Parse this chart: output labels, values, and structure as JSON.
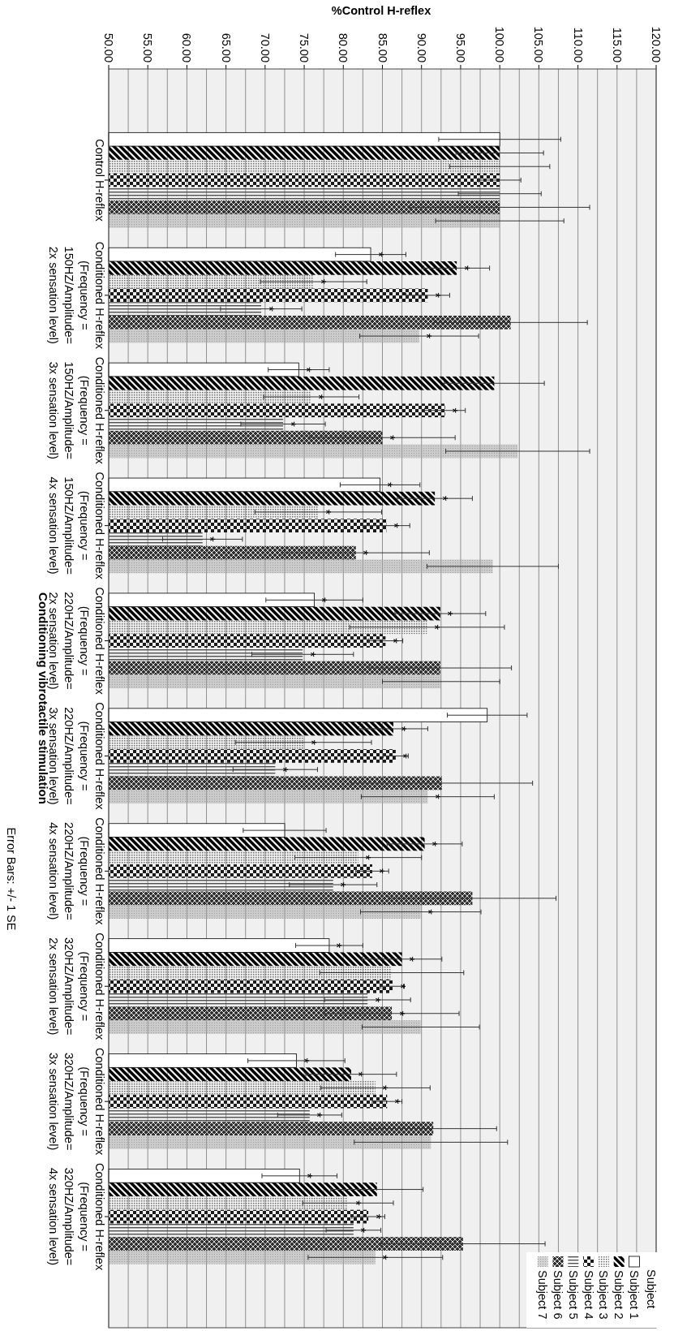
{
  "chart_data": {
    "type": "bar",
    "xlabel": "%Control H-reflex",
    "ylabel": "Conditioning vibrotactile stimulation",
    "orientation": "horizontal",
    "legend_title": "Subject",
    "annotations": [
      "Error Bars: +/- 1 SE"
    ],
    "categories": [
      "Control H-reflex",
      "Conditioned H-reflex (Frequency = 150HZ/Amplitude= 2x sensation level)",
      "Conditioned H-reflex (Frequency = 150HZ/Amplitude= 3x sensation level)",
      "Conditioned H-reflex (Frequency = 150HZ/Amplitude= 4x sensation level)",
      "Conditioned H-reflex (Frequency = 220HZ/Amplitude= 2x sensation level)",
      "Conditioned H-reflex (Frequency = 220HZ/Amplitude= 3x sensation level)",
      "Conditioned H-reflex (Frequency = 220HZ/Amplitude= 4x sensation level)",
      "Conditioned H-reflex (Frequency = 320HZ/Amplitude= 2x sensation level)",
      "Conditioned H-reflex (Frequency = 320HZ/Amplitude= 3x sensation level)",
      "Conditioned H-reflex (Frequency = 320HZ/Amplitude= 4x sensation level)"
    ],
    "series": [
      {
        "name": "Subject 1",
        "color": "#ffffff",
        "values": [
          100,
          83.5,
          74.3,
          84.7,
          76.3,
          98.4,
          72.5,
          78.2,
          74.0,
          74.4
        ],
        "errors": [
          7.8,
          4.5,
          3.9,
          5.1,
          6.2,
          5.1,
          5.3,
          4.3,
          6.2,
          4.8
        ],
        "value_labels": [
          null,
          "*",
          "*",
          "*",
          "*",
          null,
          null,
          "*",
          "*",
          "*"
        ]
      },
      {
        "name": "Subject 2",
        "color": "#000000",
        "values": [
          100,
          94.5,
          99.3,
          91.7,
          92.4,
          86.4,
          90.4,
          87.5,
          81.0,
          84.3
        ],
        "errors": [
          5.6,
          4.2,
          6.4,
          4.8,
          5.8,
          4.4,
          4.8,
          5.1,
          5.8,
          5.9
        ],
        "value_labels": [
          null,
          "*",
          null,
          "*",
          "*",
          "*",
          "*",
          "*",
          "*",
          null
        ]
      },
      {
        "name": "Subject 3",
        "color": "#707070",
        "values": [
          100,
          76.2,
          75.9,
          76.8,
          90.7,
          74.9,
          81.9,
          86.2,
          84.1,
          80.6
        ],
        "errors": [
          6.4,
          6.8,
          6.1,
          8.1,
          9.9,
          8.7,
          8.1,
          9.2,
          7.0,
          5.8
        ],
        "value_labels": [
          null,
          "*",
          "*",
          "*",
          "*",
          "*",
          "*",
          null,
          "*",
          "*"
        ]
      },
      {
        "name": "Subject 4",
        "color": "#1a1a1a",
        "values": [
          100,
          90.8,
          93.0,
          85.5,
          85.4,
          86.7,
          83.7,
          86.3,
          85.6,
          83.2
        ],
        "errors": [
          2.7,
          2.8,
          2.6,
          3.0,
          2.2,
          1.6,
          2.1,
          1.5,
          1.9,
          2.1
        ],
        "value_labels": [
          null,
          "*",
          "*",
          "*",
          "*",
          "*",
          "*",
          "*",
          "*",
          "*"
        ]
      },
      {
        "name": "Subject 5",
        "color": "#505050",
        "values": [
          100,
          69.5,
          72.3,
          62.0,
          74.8,
          71.3,
          78.7,
          83.1,
          75.7,
          81.3
        ],
        "errors": [
          5.3,
          5.2,
          5.4,
          5.1,
          6.5,
          5.4,
          5.6,
          5.5,
          4.1,
          3.5
        ],
        "value_labels": [
          null,
          "*",
          "*",
          "*",
          "*",
          "*",
          "*",
          "*",
          "*",
          "*"
        ]
      },
      {
        "name": "Subject 6",
        "color": "#303030",
        "values": [
          100,
          101.4,
          85.0,
          81.6,
          92.4,
          92.6,
          96.5,
          86.2,
          91.5,
          95.3
        ],
        "errors": [
          11.5,
          9.8,
          9.3,
          9.4,
          9.1,
          11.6,
          10.7,
          8.6,
          8.1,
          10.5
        ],
        "value_labels": [
          null,
          null,
          "*",
          "*",
          null,
          null,
          null,
          "*",
          null,
          null
        ]
      },
      {
        "name": "Subject 7",
        "color": "#a0a0a0",
        "values": [
          100,
          89.7,
          102.3,
          99.1,
          92.5,
          90.8,
          89.9,
          89.9,
          91.2,
          84.1
        ],
        "errors": [
          8.2,
          7.6,
          9.2,
          8.4,
          7.5,
          8.5,
          7.7,
          7.5,
          9.8,
          8.6
        ],
        "value_labels": [
          null,
          "*",
          null,
          null,
          null,
          "*",
          "*",
          null,
          null,
          "*"
        ]
      }
    ],
    "xlim": [
      50,
      120
    ],
    "xticks": [
      {
        "value": 50,
        "label": "50.00"
      },
      {
        "value": 52.5,
        "label": null
      },
      {
        "value": 55,
        "label": "55.00"
      },
      {
        "value": 57.5,
        "label": null
      },
      {
        "value": 60,
        "label": "60.00"
      },
      {
        "value": 62.5,
        "label": null
      },
      {
        "value": 65,
        "label": "65.00"
      },
      {
        "value": 67.5,
        "label": null
      },
      {
        "value": 70,
        "label": "70.00"
      },
      {
        "value": 72.5,
        "label": null
      },
      {
        "value": 75,
        "label": "75.00"
      },
      {
        "value": 77.5,
        "label": null
      },
      {
        "value": 80,
        "label": "80.00"
      },
      {
        "value": 82.5,
        "label": null
      },
      {
        "value": 85,
        "label": "85.00"
      },
      {
        "value": 87.5,
        "label": null
      },
      {
        "value": 90,
        "label": "90.00"
      },
      {
        "value": 92.5,
        "label": null
      },
      {
        "value": 95,
        "label": "95.00"
      },
      {
        "value": 97.5,
        "label": null
      },
      {
        "value": 100,
        "label": "100.00"
      },
      {
        "value": 102.5,
        "label": null
      },
      {
        "value": 105,
        "label": "105.00"
      },
      {
        "value": 107.5,
        "label": null
      },
      {
        "value": 110,
        "label": "110.00"
      },
      {
        "value": 112.5,
        "label": null
      },
      {
        "value": 115,
        "label": "115.00"
      },
      {
        "value": 117.5,
        "label": null
      },
      {
        "value": 120,
        "label": "120.00"
      }
    ],
    "grid": "x",
    "legend": "bottom right"
  }
}
